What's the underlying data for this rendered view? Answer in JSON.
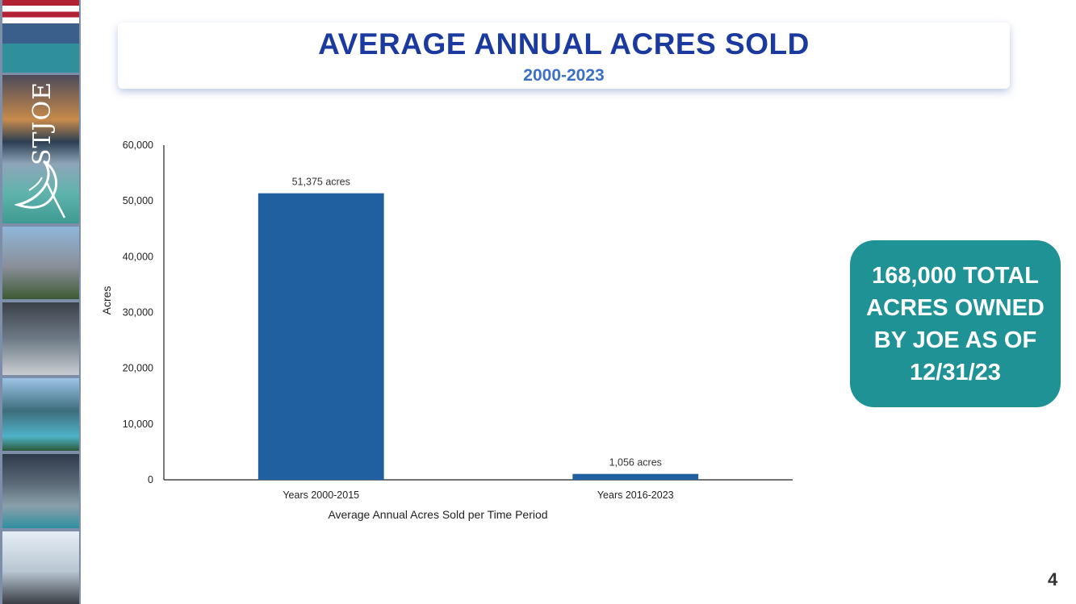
{
  "logo": {
    "text": "STJOE"
  },
  "header": {
    "title": "AVERAGE ANNUAL ACRES SOLD",
    "subtitle": "2000-2023"
  },
  "chart_data": {
    "type": "bar",
    "categories": [
      "Years 2000-2015",
      "Years 2016-2023"
    ],
    "values": [
      51375,
      1056
    ],
    "data_labels": [
      "51,375 acres",
      "1,056 acres"
    ],
    "title": "",
    "xlabel": "Average Annual Acres Sold per Time Period",
    "ylabel": "Acres",
    "ylim": [
      0,
      60000
    ],
    "yticks": [
      0,
      10000,
      20000,
      30000,
      40000,
      50000,
      60000
    ],
    "ytick_labels": [
      "0",
      "10,000",
      "20,000",
      "30,000",
      "40,000",
      "50,000",
      "60,000"
    ],
    "bar_color": "#2060a0",
    "grid": false
  },
  "callout": {
    "text": "168,000 TOTAL ACRES OWNED BY JOE AS OF 12/31/23",
    "background": "#1f9296"
  },
  "footer": {
    "page_number": "4"
  }
}
